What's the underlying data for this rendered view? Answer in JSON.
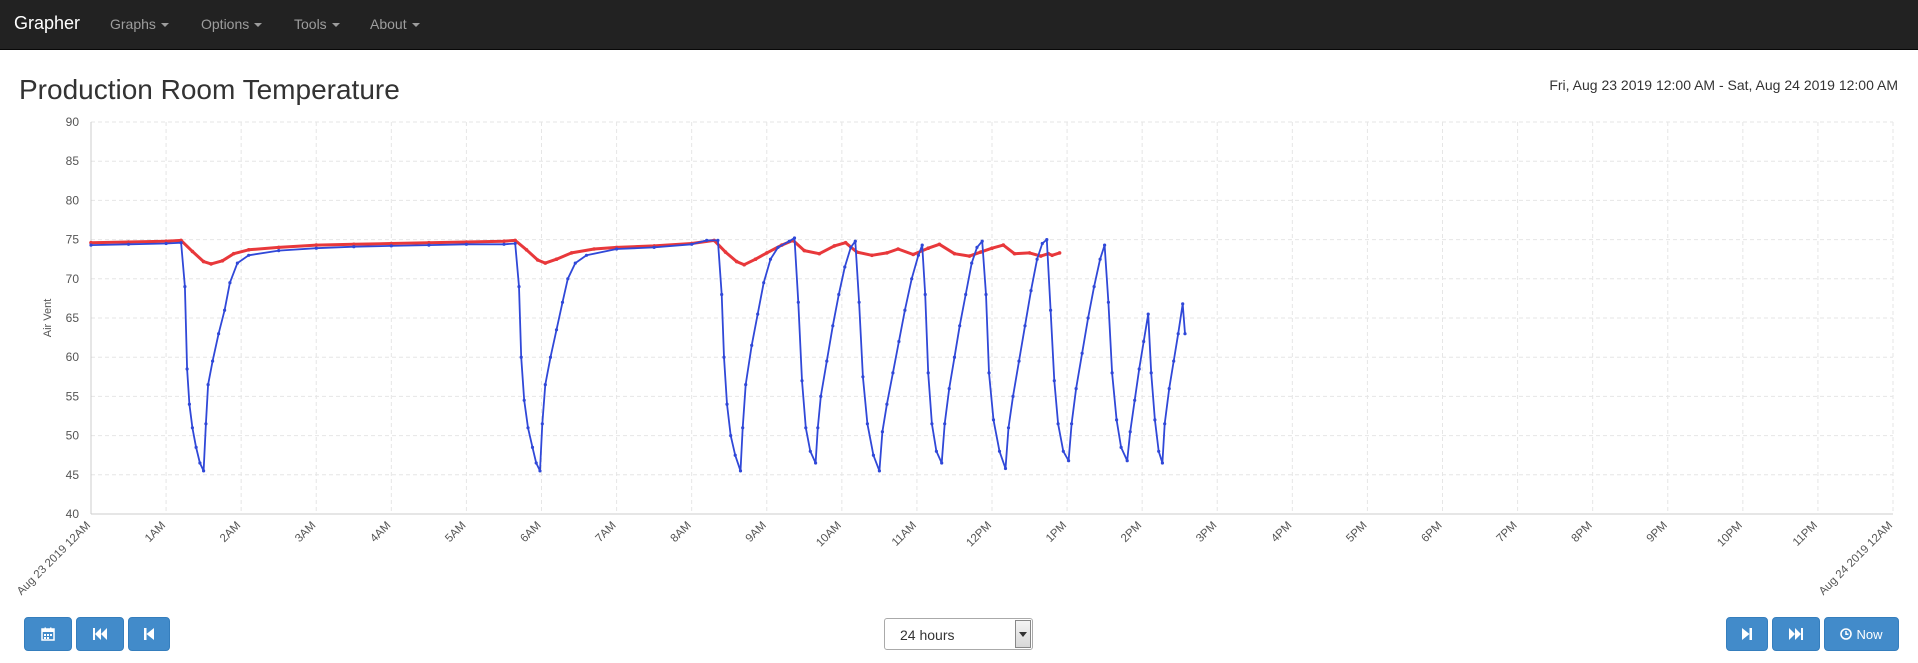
{
  "navbar": {
    "brand": "Grapher",
    "menus": [
      {
        "label": "Graphs"
      },
      {
        "label": "Options"
      },
      {
        "label": "Tools"
      },
      {
        "label": "About"
      }
    ]
  },
  "page": {
    "title": "Production Room Temperature",
    "date_range": "Fri, Aug 23 2019 12:00 AM - Sat, Aug 24 2019 12:00 AM"
  },
  "controls": {
    "range_value": "24 hours",
    "now_label": "Now",
    "icons": {
      "calendar": "calendar-icon",
      "fast_backward": "fast-backward-icon",
      "step_backward": "step-backward-icon",
      "step_forward": "step-forward-icon",
      "fast_forward": "fast-forward-icon",
      "clock": "clock-icon"
    }
  },
  "chart_data": {
    "type": "line",
    "ylabel": "Air Vent",
    "ylim": [
      40,
      90
    ],
    "yticks": [
      40,
      45,
      50,
      55,
      60,
      65,
      70,
      75,
      80,
      85,
      90
    ],
    "xlim": [
      0,
      24
    ],
    "x_unit": "hours since Aug 23 2019 12:00 AM",
    "xtick_labels": [
      "Aug 23 2019 12AM",
      "1AM",
      "2AM",
      "3AM",
      "4AM",
      "5AM",
      "6AM",
      "7AM",
      "8AM",
      "9AM",
      "10AM",
      "11AM",
      "12PM",
      "1PM",
      "2PM",
      "3PM",
      "4PM",
      "5PM",
      "6PM",
      "7PM",
      "8PM",
      "9PM",
      "10PM",
      "11PM",
      "Aug 24 2019 12AM"
    ],
    "grid": true,
    "series": [
      {
        "color": "#e8383b",
        "points": [
          [
            0,
            74.6
          ],
          [
            0.5,
            74.7
          ],
          [
            1.0,
            74.8
          ],
          [
            1.2,
            74.9
          ],
          [
            1.35,
            73.5
          ],
          [
            1.5,
            72.2
          ],
          [
            1.6,
            71.9
          ],
          [
            1.75,
            72.3
          ],
          [
            1.9,
            73.2
          ],
          [
            2.1,
            73.7
          ],
          [
            2.5,
            74.0
          ],
          [
            3.0,
            74.3
          ],
          [
            3.5,
            74.4
          ],
          [
            4.0,
            74.5
          ],
          [
            4.5,
            74.6
          ],
          [
            5.0,
            74.7
          ],
          [
            5.5,
            74.8
          ],
          [
            5.65,
            74.9
          ],
          [
            5.8,
            73.7
          ],
          [
            5.95,
            72.4
          ],
          [
            6.05,
            72.0
          ],
          [
            6.2,
            72.5
          ],
          [
            6.4,
            73.3
          ],
          [
            6.7,
            73.8
          ],
          [
            7.0,
            74.0
          ],
          [
            7.5,
            74.2
          ],
          [
            8.0,
            74.5
          ],
          [
            8.3,
            74.9
          ],
          [
            8.45,
            73.4
          ],
          [
            8.6,
            72.2
          ],
          [
            8.7,
            71.8
          ],
          [
            8.85,
            72.5
          ],
          [
            9.0,
            73.3
          ],
          [
            9.2,
            74.3
          ],
          [
            9.35,
            74.9
          ],
          [
            9.5,
            73.6
          ],
          [
            9.7,
            73.2
          ],
          [
            9.9,
            74.2
          ],
          [
            10.05,
            74.6
          ],
          [
            10.2,
            73.4
          ],
          [
            10.4,
            73.0
          ],
          [
            10.6,
            73.3
          ],
          [
            10.75,
            73.8
          ],
          [
            10.95,
            73.1
          ],
          [
            11.15,
            73.9
          ],
          [
            11.3,
            74.4
          ],
          [
            11.5,
            73.2
          ],
          [
            11.7,
            72.9
          ],
          [
            11.85,
            73.4
          ],
          [
            12.0,
            73.9
          ],
          [
            12.15,
            74.3
          ],
          [
            12.3,
            73.2
          ],
          [
            12.5,
            73.3
          ],
          [
            12.65,
            72.9
          ],
          [
            12.75,
            73.2
          ],
          [
            12.8,
            73.0
          ],
          [
            12.9,
            73.3
          ]
        ]
      },
      {
        "color": "#3048d8",
        "points": [
          [
            0,
            74.3
          ],
          [
            0.5,
            74.4
          ],
          [
            1.0,
            74.5
          ],
          [
            1.2,
            74.6
          ],
          [
            1.25,
            69.0
          ],
          [
            1.28,
            58.5
          ],
          [
            1.31,
            54.0
          ],
          [
            1.35,
            51.0
          ],
          [
            1.4,
            48.5
          ],
          [
            1.45,
            46.5
          ],
          [
            1.5,
            45.5
          ],
          [
            1.53,
            51.5
          ],
          [
            1.56,
            56.5
          ],
          [
            1.62,
            59.5
          ],
          [
            1.7,
            63.0
          ],
          [
            1.78,
            66.0
          ],
          [
            1.85,
            69.5
          ],
          [
            1.95,
            72.0
          ],
          [
            2.1,
            73.0
          ],
          [
            2.5,
            73.6
          ],
          [
            3.0,
            73.9
          ],
          [
            3.5,
            74.1
          ],
          [
            4.0,
            74.2
          ],
          [
            4.5,
            74.3
          ],
          [
            5.0,
            74.4
          ],
          [
            5.5,
            74.4
          ],
          [
            5.65,
            74.5
          ],
          [
            5.7,
            69.0
          ],
          [
            5.73,
            60.0
          ],
          [
            5.77,
            54.5
          ],
          [
            5.82,
            51.0
          ],
          [
            5.88,
            48.5
          ],
          [
            5.93,
            46.5
          ],
          [
            5.98,
            45.5
          ],
          [
            6.01,
            51.5
          ],
          [
            6.05,
            56.5
          ],
          [
            6.12,
            60.0
          ],
          [
            6.2,
            63.5
          ],
          [
            6.28,
            67.0
          ],
          [
            6.35,
            70.0
          ],
          [
            6.45,
            72.0
          ],
          [
            6.6,
            73.0
          ],
          [
            7.0,
            73.8
          ],
          [
            7.5,
            74.0
          ],
          [
            8.0,
            74.4
          ],
          [
            8.2,
            74.9
          ],
          [
            8.35,
            74.9
          ],
          [
            8.4,
            68.0
          ],
          [
            8.43,
            60.0
          ],
          [
            8.47,
            54.0
          ],
          [
            8.52,
            50.0
          ],
          [
            8.58,
            47.5
          ],
          [
            8.65,
            45.5
          ],
          [
            8.68,
            51.0
          ],
          [
            8.72,
            56.5
          ],
          [
            8.8,
            61.5
          ],
          [
            8.88,
            65.5
          ],
          [
            8.96,
            69.5
          ],
          [
            9.05,
            72.5
          ],
          [
            9.15,
            74.0
          ],
          [
            9.3,
            74.8
          ],
          [
            9.37,
            75.2
          ],
          [
            9.42,
            67.0
          ],
          [
            9.47,
            57.0
          ],
          [
            9.52,
            51.0
          ],
          [
            9.58,
            48.0
          ],
          [
            9.65,
            46.5
          ],
          [
            9.68,
            51.0
          ],
          [
            9.72,
            55.0
          ],
          [
            9.8,
            59.5
          ],
          [
            9.88,
            64.0
          ],
          [
            9.96,
            68.0
          ],
          [
            10.04,
            71.5
          ],
          [
            10.12,
            74.0
          ],
          [
            10.18,
            74.8
          ],
          [
            10.23,
            67.0
          ],
          [
            10.28,
            57.5
          ],
          [
            10.34,
            51.5
          ],
          [
            10.42,
            47.5
          ],
          [
            10.5,
            45.5
          ],
          [
            10.54,
            50.5
          ],
          [
            10.6,
            54.0
          ],
          [
            10.68,
            58.0
          ],
          [
            10.76,
            62.0
          ],
          [
            10.84,
            66.0
          ],
          [
            10.93,
            70.0
          ],
          [
            11.02,
            73.0
          ],
          [
            11.07,
            74.3
          ],
          [
            11.11,
            68.0
          ],
          [
            11.15,
            58.0
          ],
          [
            11.2,
            51.5
          ],
          [
            11.26,
            48.0
          ],
          [
            11.33,
            46.5
          ],
          [
            11.37,
            51.5
          ],
          [
            11.43,
            56.0
          ],
          [
            11.5,
            60.0
          ],
          [
            11.57,
            64.0
          ],
          [
            11.65,
            68.0
          ],
          [
            11.73,
            72.0
          ],
          [
            11.8,
            74.0
          ],
          [
            11.87,
            74.8
          ],
          [
            11.92,
            68.0
          ],
          [
            11.96,
            58.0
          ],
          [
            12.02,
            52.0
          ],
          [
            12.1,
            48.0
          ],
          [
            12.18,
            45.8
          ],
          [
            12.22,
            51.0
          ],
          [
            12.28,
            55.0
          ],
          [
            12.36,
            59.5
          ],
          [
            12.44,
            64.0
          ],
          [
            12.52,
            68.5
          ],
          [
            12.6,
            72.5
          ],
          [
            12.67,
            74.5
          ],
          [
            12.73,
            75.0
          ],
          [
            12.78,
            66.0
          ],
          [
            12.83,
            57.0
          ],
          [
            12.88,
            51.5
          ],
          [
            12.95,
            48.0
          ],
          [
            13.02,
            46.8
          ],
          [
            13.06,
            51.5
          ],
          [
            13.12,
            56.0
          ],
          [
            13.2,
            60.5
          ],
          [
            13.28,
            65.0
          ],
          [
            13.36,
            69.0
          ],
          [
            13.44,
            72.5
          ],
          [
            13.5,
            74.3
          ],
          [
            13.55,
            67.0
          ],
          [
            13.6,
            58.0
          ],
          [
            13.66,
            52.0
          ],
          [
            13.72,
            48.5
          ],
          [
            13.8,
            46.8
          ],
          [
            13.84,
            50.5
          ],
          [
            13.9,
            54.5
          ],
          [
            13.96,
            58.5
          ],
          [
            14.02,
            62.0
          ],
          [
            14.08,
            65.5
          ],
          [
            14.12,
            58.0
          ],
          [
            14.17,
            52.0
          ],
          [
            14.22,
            48.0
          ],
          [
            14.27,
            46.5
          ],
          [
            14.3,
            51.5
          ],
          [
            14.36,
            56.0
          ],
          [
            14.42,
            59.5
          ],
          [
            14.48,
            63.0
          ],
          [
            14.54,
            66.8
          ],
          [
            14.57,
            63.0
          ]
        ]
      }
    ]
  }
}
